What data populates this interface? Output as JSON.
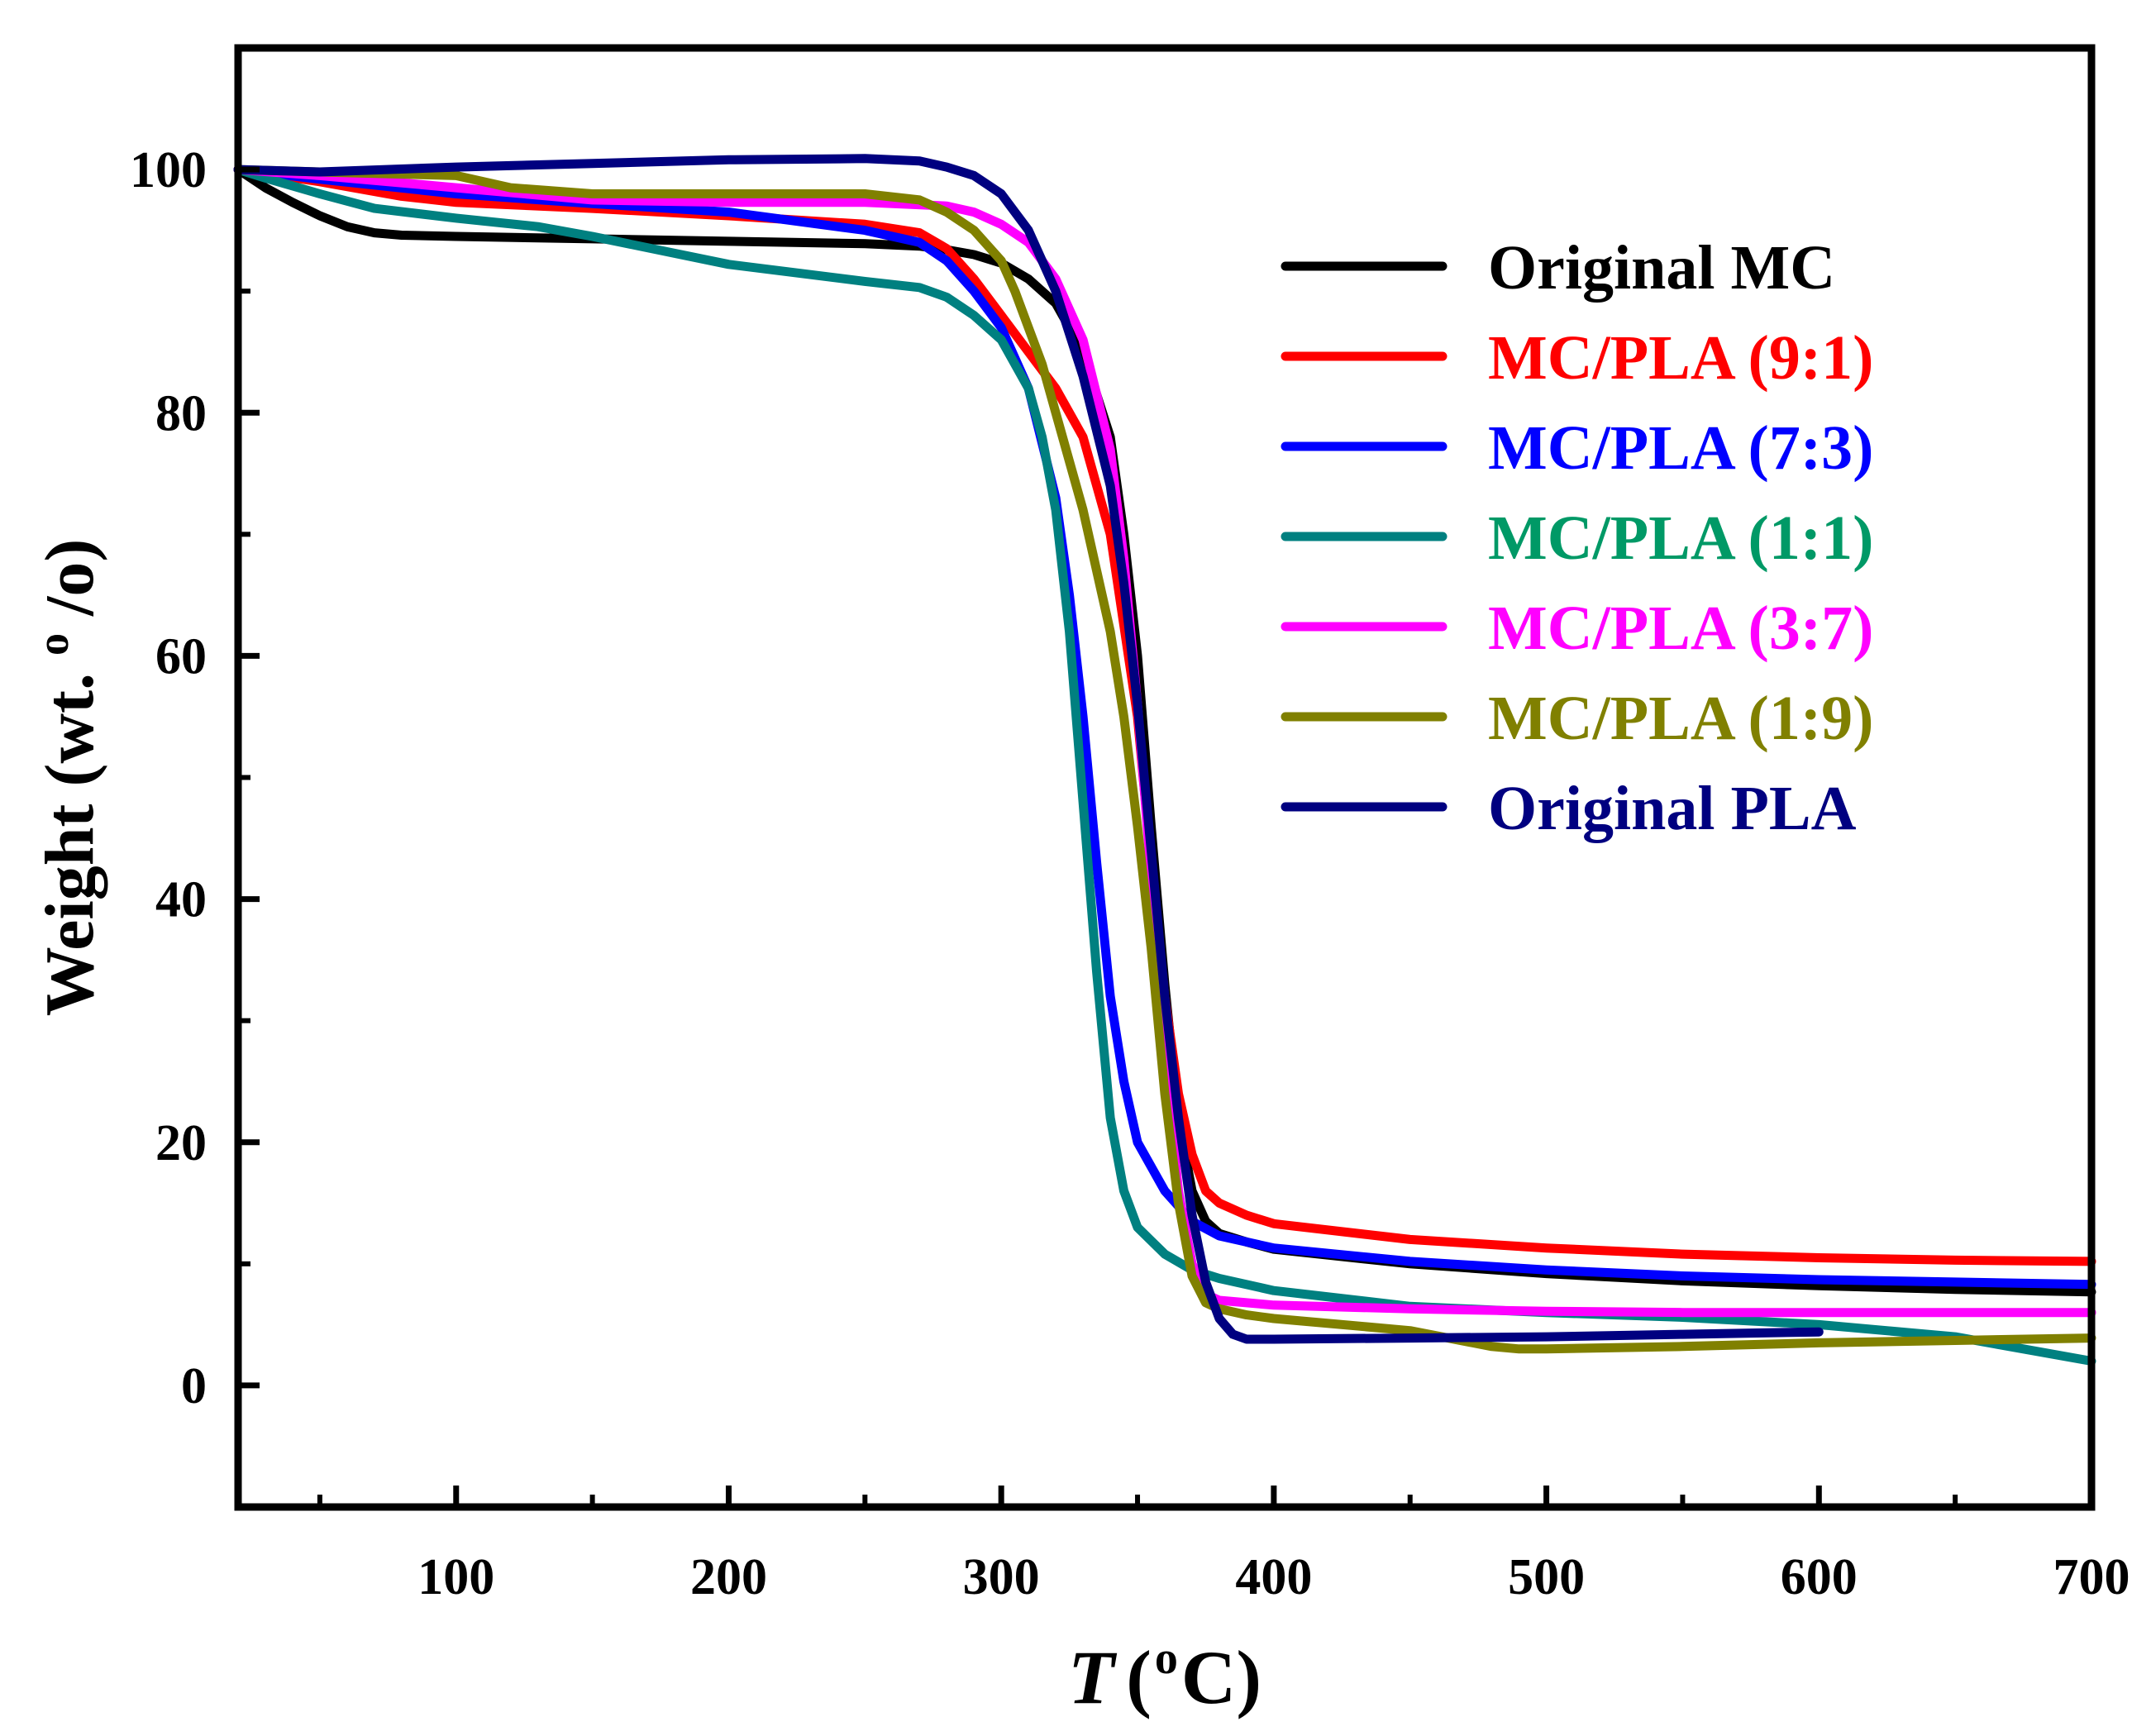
{
  "chart_data": {
    "type": "line",
    "title": "",
    "xlabel": "T",
    "xlabel_unit": "(oC)",
    "xlabel_unit_prefix": "(",
    "xlabel_unit_sup": "o",
    "xlabel_unit_suffix": "C)",
    "ylabel": "Weight (wt.%)",
    "ylabel_prefix": "Weight (wt.",
    "ylabel_sup": "o",
    "ylabel_suffix": "/o)",
    "xlim": [
      20,
      700
    ],
    "ylim": [
      -10,
      110
    ],
    "xticks": [
      100,
      200,
      300,
      400,
      500,
      600,
      700
    ],
    "yticks": [
      0,
      20,
      40,
      60,
      80,
      100
    ],
    "legend_position": "top-right",
    "series": [
      {
        "name": "Original MC",
        "color": "#000000",
        "x": [
          20,
          30,
          40,
          50,
          60,
          70,
          80,
          100,
          150,
          200,
          250,
          270,
          280,
          290,
          300,
          310,
          320,
          330,
          340,
          345,
          350,
          355,
          360,
          365,
          370,
          375,
          380,
          390,
          400,
          450,
          500,
          550,
          600,
          650,
          700
        ],
        "y": [
          100,
          98.5,
          97.3,
          96.2,
          95.3,
          94.8,
          94.6,
          94.5,
          94.3,
          94.1,
          93.9,
          93.7,
          93.4,
          93.0,
          92.3,
          91.0,
          89.0,
          85.0,
          78.0,
          70.0,
          60.0,
          46.0,
          33.0,
          22.0,
          16.0,
          13.5,
          12.5,
          11.8,
          11.2,
          10.0,
          9.2,
          8.6,
          8.2,
          7.9,
          7.7
        ]
      },
      {
        "name": "MC/PLA (9:1)",
        "color": "#ff0000",
        "x": [
          20,
          50,
          80,
          100,
          150,
          200,
          250,
          270,
          280,
          290,
          300,
          310,
          320,
          330,
          340,
          350,
          355,
          360,
          365,
          370,
          375,
          380,
          390,
          400,
          450,
          500,
          550,
          600,
          650,
          700
        ],
        "y": [
          100,
          99.0,
          97.8,
          97.3,
          96.8,
          96.2,
          95.5,
          94.8,
          93.5,
          91.0,
          88.0,
          85.0,
          82.0,
          78.0,
          70.0,
          55.0,
          43.0,
          32.0,
          24.0,
          19.0,
          16.0,
          15.0,
          14.0,
          13.3,
          12.0,
          11.3,
          10.8,
          10.5,
          10.3,
          10.2
        ]
      },
      {
        "name": "MC/PLA (7:3)",
        "color": "#0000ff",
        "x": [
          20,
          50,
          100,
          150,
          200,
          250,
          270,
          280,
          290,
          300,
          310,
          320,
          325,
          330,
          335,
          340,
          345,
          350,
          360,
          370,
          380,
          390,
          400,
          450,
          500,
          550,
          600,
          650,
          700
        ],
        "y": [
          100,
          99.2,
          98.0,
          97.2,
          96.5,
          95.0,
          94.0,
          92.5,
          90.0,
          87.0,
          82.0,
          73.0,
          65.0,
          55.0,
          43.0,
          32.0,
          25.0,
          20.0,
          16.0,
          13.5,
          12.3,
          11.8,
          11.3,
          10.2,
          9.5,
          9.0,
          8.7,
          8.5,
          8.3
        ]
      },
      {
        "name": "MC/PLA (1:1)",
        "color": "#008080",
        "x": [
          20,
          30,
          50,
          70,
          100,
          130,
          150,
          200,
          250,
          270,
          280,
          290,
          300,
          310,
          315,
          320,
          325,
          330,
          335,
          340,
          345,
          350,
          360,
          370,
          380,
          400,
          450,
          500,
          550,
          600,
          650,
          700
        ],
        "y": [
          100,
          99.3,
          98.0,
          96.8,
          96.0,
          95.3,
          94.5,
          92.2,
          90.8,
          90.3,
          89.5,
          88.0,
          86.0,
          82.0,
          78.0,
          72.0,
          62.0,
          48.0,
          34.0,
          22.0,
          16.0,
          13.0,
          10.8,
          9.5,
          8.8,
          7.8,
          6.5,
          6.0,
          5.6,
          5.0,
          4.0,
          2.0
        ]
      },
      {
        "name": "MC/PLA (3:7)",
        "color": "#ff00ff",
        "x": [
          20,
          50,
          100,
          150,
          200,
          250,
          280,
          290,
          300,
          310,
          320,
          330,
          340,
          345,
          350,
          355,
          360,
          365,
          370,
          375,
          380,
          390,
          400,
          450,
          500,
          550,
          600,
          650,
          700
        ],
        "y": [
          100,
          99.5,
          98.5,
          97.5,
          97.3,
          97.3,
          97.0,
          96.5,
          95.5,
          94.0,
          91.0,
          86.0,
          77.0,
          68.0,
          56.0,
          42.0,
          27.0,
          16.0,
          10.0,
          7.5,
          7.0,
          6.8,
          6.6,
          6.3,
          6.1,
          6.0,
          6.0,
          6.0,
          6.0
        ]
      },
      {
        "name": "MC/PLA (1:9)",
        "color": "#808000",
        "x": [
          20,
          50,
          100,
          120,
          150,
          200,
          250,
          270,
          280,
          290,
          300,
          305,
          310,
          315,
          320,
          330,
          340,
          345,
          350,
          355,
          360,
          365,
          370,
          375,
          380,
          390,
          400,
          450,
          480,
          490,
          500,
          550,
          600,
          650,
          700
        ],
        "y": [
          100,
          99.8,
          99.5,
          98.5,
          98.0,
          98.0,
          98.0,
          97.5,
          96.5,
          95.0,
          92.5,
          90.0,
          87.0,
          84.0,
          80.0,
          72.0,
          62.0,
          55.0,
          46.0,
          36.0,
          24.0,
          15.0,
          9.0,
          6.8,
          6.3,
          5.8,
          5.5,
          4.5,
          3.2,
          3.0,
          3.0,
          3.2,
          3.5,
          3.7,
          3.9
        ]
      },
      {
        "name": "Original PLA",
        "color": "#000080",
        "x": [
          20,
          50,
          100,
          150,
          200,
          250,
          270,
          280,
          290,
          300,
          310,
          320,
          330,
          340,
          345,
          350,
          355,
          360,
          365,
          370,
          375,
          380,
          385,
          390,
          400,
          450,
          500,
          550,
          600
        ],
        "y": [
          100,
          99.8,
          100.2,
          100.5,
          100.8,
          100.9,
          100.7,
          100.2,
          99.5,
          98.0,
          95.0,
          90.0,
          83.0,
          74.0,
          66.0,
          56.0,
          44.0,
          32.0,
          22.0,
          14.0,
          8.5,
          5.5,
          4.2,
          3.8,
          3.8,
          3.9,
          4.0,
          4.2,
          4.4
        ]
      }
    ]
  }
}
